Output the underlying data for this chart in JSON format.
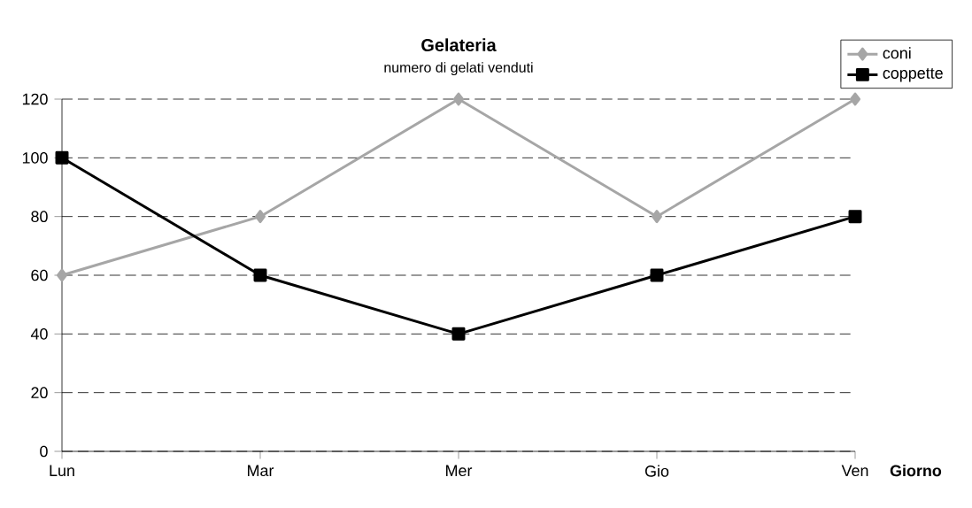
{
  "chart_data": {
    "type": "line",
    "title": "Gelateria",
    "subtitle": "numero di gelati venduti",
    "xlabel": "Giorno",
    "categories": [
      "Lun",
      "Mar",
      "Mer",
      "Gio",
      "Ven"
    ],
    "series": [
      {
        "name": "coni",
        "color": "#a6a6a6",
        "marker": "diamond",
        "values": [
          60,
          80,
          120,
          80,
          120
        ]
      },
      {
        "name": "coppette",
        "color": "#000000",
        "marker": "square",
        "values": [
          100,
          60,
          40,
          60,
          80
        ]
      }
    ],
    "ylim": [
      0,
      120
    ],
    "yticks": [
      0,
      20,
      40,
      60,
      80,
      100,
      120
    ],
    "grid": "y",
    "legend": "top right"
  }
}
